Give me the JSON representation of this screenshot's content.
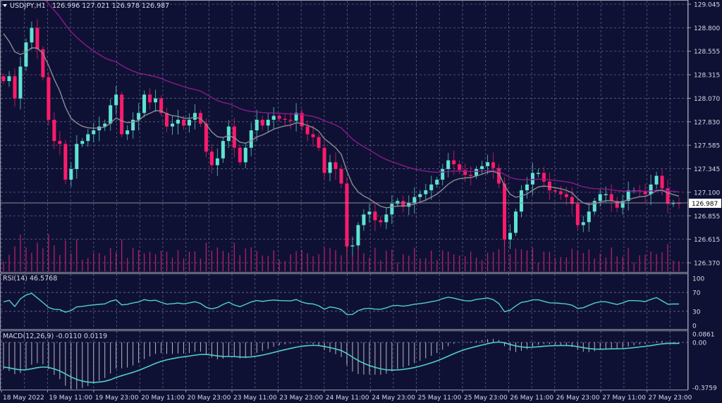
{
  "header": {
    "symbol": "USDJPY,H1",
    "ohlc": "126.996 127.021 126.978 126.987"
  },
  "colors": {
    "background": "#0f1134",
    "grid": "#5b6088",
    "bull": "#5fe3d2",
    "bear": "#ff1b6b",
    "volume": "#b3206b",
    "ma_fast": "#8c8c94",
    "ma_slow": "#8a1a8c",
    "rsi": "#4fd0c8",
    "macd_hist": "#b8b8c4",
    "macd_signal": "#4fd0c8"
  },
  "chart_data": [
    {
      "type": "candlestick",
      "title": "USDJPY,H1",
      "current_price": 126.987,
      "y_ticks": [
        "129.045",
        "128.800",
        "128.555",
        "128.315",
        "128.070",
        "127.830",
        "127.585",
        "127.345",
        "127.100",
        "126.855",
        "126.615",
        "126.370"
      ],
      "ylim": [
        126.37,
        129.045
      ],
      "x_ticks": [
        "18 May 2022",
        "19 May 11:00",
        "19 May 23:00",
        "20 May 11:00",
        "20 May 23:00",
        "23 May 11:00",
        "23 May 23:00",
        "24 May 11:00",
        "24 May 23:00",
        "25 May 11:00",
        "25 May 23:00",
        "26 May 11:00",
        "26 May 23:00",
        "27 May 11:00",
        "27 May 23:00"
      ],
      "grid": true,
      "first_open": 128.3,
      "closes": [
        128.25,
        128.3,
        128.07,
        128.4,
        128.65,
        128.8,
        128.58,
        128.29,
        127.85,
        127.63,
        127.6,
        127.23,
        127.34,
        127.6,
        127.63,
        127.7,
        127.74,
        127.78,
        127.81,
        128.0,
        128.11,
        127.7,
        127.74,
        127.85,
        127.92,
        128.11,
        128.03,
        128.07,
        127.92,
        127.78,
        127.81,
        127.85,
        127.79,
        127.85,
        127.92,
        127.81,
        127.52,
        127.38,
        127.45,
        127.63,
        127.78,
        127.56,
        127.41,
        127.56,
        127.74,
        127.85,
        127.79,
        127.85,
        127.89,
        127.86,
        127.85,
        127.84,
        127.92,
        127.78,
        127.7,
        127.67,
        127.56,
        127.3,
        127.41,
        127.34,
        127.19,
        126.54,
        126.55,
        126.76,
        126.87,
        126.9,
        126.81,
        126.79,
        126.87,
        126.98,
        127.01,
        126.95,
        126.99,
        127.05,
        127.08,
        127.12,
        127.18,
        127.23,
        127.34,
        127.43,
        127.39,
        127.33,
        127.28,
        127.27,
        127.34,
        127.37,
        127.41,
        127.35,
        127.19,
        126.61,
        126.68,
        126.9,
        127.12,
        127.18,
        127.3,
        127.3,
        127.21,
        127.12,
        127.11,
        127.08,
        127.05,
        126.98,
        126.76,
        126.79,
        126.9,
        127.01,
        127.08,
        127.08,
        127.01,
        126.94,
        127.01,
        127.12,
        127.12,
        127.11,
        127.08,
        127.18,
        127.27,
        127.14,
        126.98,
        126.99,
        126.987
      ]
    },
    {
      "type": "line",
      "title": "RSI(14) 46.5768",
      "y_ticks": [
        "100",
        "70",
        "30",
        "0"
      ],
      "ylim": [
        0,
        100
      ]
    },
    {
      "type": "bar",
      "title": "MACD(12,26,9) -0.0110 0.0119",
      "y_ticks": [
        "0.0861",
        "0.00",
        "-0.3759"
      ],
      "ylim": [
        -0.3759,
        0.0861
      ]
    }
  ]
}
